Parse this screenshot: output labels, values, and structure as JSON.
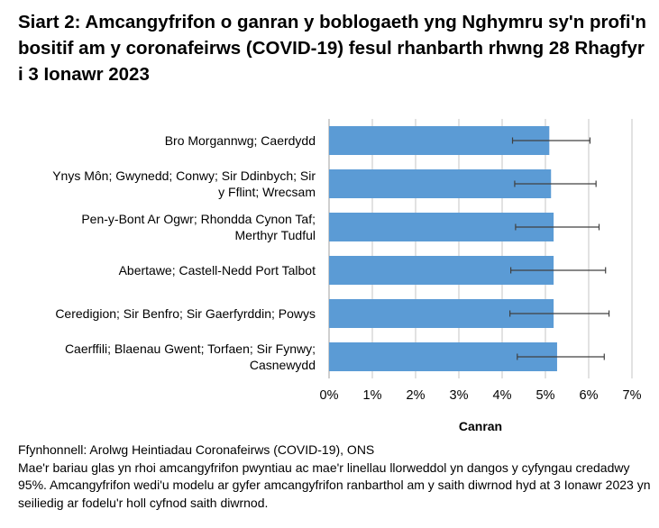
{
  "chart_data": {
    "type": "bar",
    "orientation": "horizontal",
    "title": "Siart 2: Amcangyfrifon o ganran y boblogaeth yng Nghymru sy'n profi'n bositif am y coronafeirws (COVID-19) fesul rhanbarth rhwng 28 Rhagfyr i 3 Ionawr 2023",
    "categories": [
      [
        "Bro Morgannwg; Caerdydd"
      ],
      [
        "Ynys Môn; Gwynedd; Conwy; Sir Ddinbych; Sir",
        "y Fflint; Wrecsam"
      ],
      [
        "Pen-y-Bont Ar Ogwr; Rhondda Cynon Taf;",
        "Merthyr Tudful"
      ],
      [
        "Abertawe; Castell-Nedd Port Talbot"
      ],
      [
        "Ceredigion; Sir Benfro; Sir Gaerfyrddin; Powys"
      ],
      [
        "Caerffili; Blaenau Gwent; Torfaen; Sir Fynwy;",
        "Casnewydd"
      ]
    ],
    "values": [
      5.09,
      5.13,
      5.19,
      5.19,
      5.19,
      5.27
    ],
    "ci_lower": [
      4.24,
      4.29,
      4.31,
      4.2,
      4.18,
      4.35
    ],
    "ci_upper": [
      6.03,
      6.17,
      6.24,
      6.39,
      6.47,
      6.36
    ],
    "xlim": [
      0,
      7
    ],
    "xticks": [
      "0%",
      "1%",
      "2%",
      "3%",
      "4%",
      "5%",
      "6%",
      "7%"
    ],
    "xlabel": "Canran",
    "ylabel": "",
    "grid": "vertical",
    "bar_color": "#5B9BD5",
    "errorbar_color": "#404040"
  },
  "notes": {
    "source": "Ffynhonnell: Arolwg Heintiadau Coronafeirws (COVID-19), ONS",
    "footnote": "Mae'r bariau glas yn rhoi amcangyfrifon pwyntiau ac mae'r linellau llorweddol yn dangos y cyfyngau credadwy 95%. Amcangyfrifon wedi'u modelu ar gyfer amcangyfrifon ranbarthol am y saith diwrnod hyd at 3 Ionawr 2023 yn seiliedig ar fodelu'r holl cyfnod saith diwrnod."
  }
}
